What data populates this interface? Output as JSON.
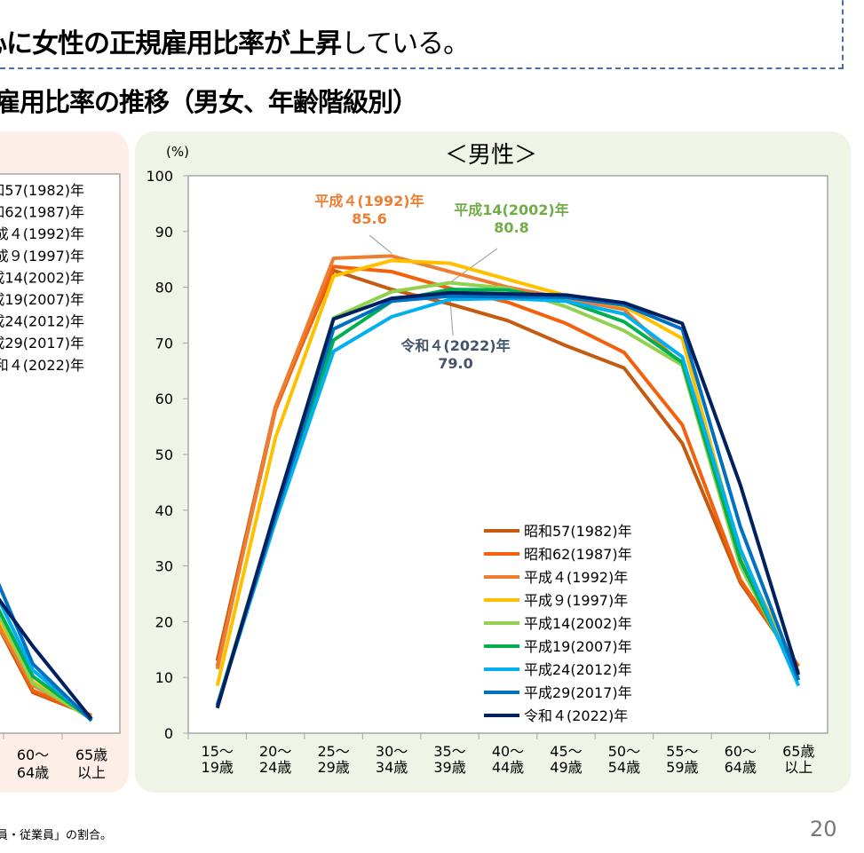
{
  "header": {
    "title_bold": "心に女性の正規雇用比率が上昇",
    "title_normal": "している。",
    "subtitle": "雇用比率の推移（男女、年齢階級別）"
  },
  "footnote": "員・従業員」の割合。",
  "page_number": "20",
  "left_panel": {
    "x_labels": [
      [
        "60～",
        "64歳"
      ],
      [
        "65歳",
        "以上"
      ]
    ]
  },
  "chart_data": {
    "type": "line",
    "title": "＜男性＞",
    "ylabel": "(%)",
    "ylim": [
      0,
      100
    ],
    "yticks": [
      0,
      10,
      20,
      30,
      40,
      50,
      60,
      70,
      80,
      90,
      100
    ],
    "grid": false,
    "legend_placement": "bottom-right",
    "categories": [
      [
        "15～",
        "19歳"
      ],
      [
        "20～",
        "24歳"
      ],
      [
        "25～",
        "29歳"
      ],
      [
        "30～",
        "34歳"
      ],
      [
        "35～",
        "39歳"
      ],
      [
        "40～",
        "44歳"
      ],
      [
        "45～",
        "49歳"
      ],
      [
        "50～",
        "54歳"
      ],
      [
        "55～",
        "59歳"
      ],
      [
        "60～",
        "64歳"
      ],
      [
        "65歳",
        "以上"
      ]
    ],
    "series": [
      {
        "name": "昭和57(1982)年",
        "color": "#c55a11",
        "values": [
          13,
          58.5,
          83,
          79.6,
          77,
          74,
          69.5,
          65.5,
          52,
          27,
          12
        ]
      },
      {
        "name": "昭和62(1987)年",
        "color": "#f4600b",
        "values": [
          12,
          58,
          83.7,
          82.8,
          79.8,
          77.3,
          73.5,
          68.3,
          55.3,
          27.5,
          12
        ]
      },
      {
        "name": "平成４(1992)年",
        "color": "#ed7d31",
        "values": [
          11.5,
          58.5,
          85.2,
          85.6,
          82.8,
          80,
          78,
          76,
          66,
          30,
          11
        ]
      },
      {
        "name": "平成９(1997)年",
        "color": "#ffc000",
        "values": [
          8.5,
          53,
          82,
          84.8,
          84.3,
          81.4,
          78.5,
          76.6,
          70.8,
          32,
          11
        ]
      },
      {
        "name": "平成14(2002)年",
        "color": "#92d050",
        "values": [
          5,
          40,
          74.5,
          79.2,
          80.8,
          79.8,
          76.5,
          72.2,
          66,
          30,
          10
        ]
      },
      {
        "name": "平成19(2007)年",
        "color": "#00b050",
        "values": [
          5,
          39,
          70.5,
          77.5,
          79.6,
          79.5,
          77.5,
          73.8,
          66.5,
          31,
          9.5
        ]
      },
      {
        "name": "平成24(2012)年",
        "color": "#00b0f0",
        "values": [
          5,
          38,
          68.5,
          74.7,
          77.8,
          78,
          77.5,
          75.2,
          67.5,
          33,
          8.5
        ]
      },
      {
        "name": "平成29(2017)年",
        "color": "#0070c0",
        "values": [
          5,
          39,
          72.5,
          77.5,
          78.4,
          78.3,
          78.2,
          76.8,
          72.5,
          37,
          9.5
        ]
      },
      {
        "name": "令和４(2022)年",
        "color": "#002060",
        "values": [
          4.5,
          40,
          74.3,
          78,
          79.0,
          78.8,
          78.6,
          77.2,
          73.5,
          44.5,
          10.5
        ]
      }
    ],
    "annotations": [
      {
        "series": "平成４(1992)年",
        "label": "平成４(1992)年",
        "value": "85.6",
        "category": "30～34歳",
        "color": "#ed7d31"
      },
      {
        "series": "平成14(2002)年",
        "label": "平成14(2002)年",
        "value": "80.8",
        "category": "35～39歳",
        "color": "#70ad47"
      },
      {
        "series": "令和４(2022)年",
        "label": "令和４(2022)年",
        "value": "79.0",
        "category": "35～39歳",
        "color": "#44546a"
      }
    ]
  }
}
